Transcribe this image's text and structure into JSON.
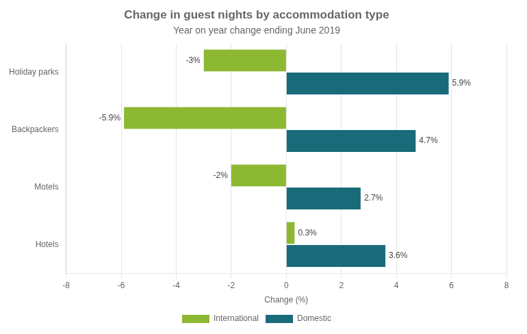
{
  "chart_data": {
    "type": "bar",
    "orientation": "horizontal",
    "title": "Change in guest nights by accommodation type",
    "subtitle": "Year on year change ending June 2019",
    "categories": [
      "Hotels",
      "Motels",
      "Backpackers",
      "Holiday parks"
    ],
    "series": [
      {
        "name": "International",
        "color": "#8db832",
        "values": [
          0.3,
          -2.0,
          -5.9,
          -3.0
        ],
        "value_labels": [
          "0.3%",
          "-2%",
          "-5.9%",
          "-3%"
        ]
      },
      {
        "name": "Domestic",
        "color": "#1a6b7a",
        "values": [
          3.6,
          2.7,
          4.7,
          5.9
        ],
        "value_labels": [
          "3.6%",
          "2.7%",
          "4.7%",
          "5.9%"
        ]
      }
    ],
    "x_label": "Change (%)",
    "xlim": [
      -8,
      8
    ],
    "xticks": [
      -8,
      -6,
      -4,
      -2,
      0,
      2,
      4,
      6,
      8
    ],
    "grid": "x",
    "legend": "bottom",
    "data_labels": true
  }
}
